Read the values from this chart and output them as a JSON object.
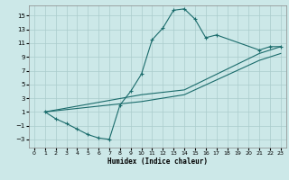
{
  "xlabel": "Humidex (Indice chaleur)",
  "bg_color": "#cce8e8",
  "grid_color": "#aacccc",
  "line_color": "#1a6b6b",
  "xlim": [
    -0.5,
    23.5
  ],
  "ylim": [
    -4.2,
    16.5
  ],
  "xticks": [
    0,
    1,
    2,
    3,
    4,
    5,
    6,
    7,
    8,
    9,
    10,
    11,
    12,
    13,
    14,
    15,
    16,
    17,
    18,
    19,
    20,
    21,
    22,
    23
  ],
  "yticks": [
    -3,
    -1,
    1,
    3,
    5,
    7,
    9,
    11,
    13,
    15
  ],
  "curve_x": [
    1,
    2,
    3,
    4,
    5,
    6,
    7,
    8,
    9,
    10,
    11,
    12,
    13,
    14,
    15,
    16,
    17,
    21,
    22,
    23
  ],
  "curve_y": [
    1,
    0,
    -0.7,
    -1.5,
    -2.3,
    -2.8,
    -3.0,
    2.0,
    4.0,
    6.5,
    11.5,
    13.2,
    15.8,
    16.0,
    14.5,
    11.8,
    12.2,
    10.0,
    10.5,
    10.5
  ],
  "line_upper_x": [
    1,
    10,
    14,
    21,
    22,
    23
  ],
  "line_upper_y": [
    1,
    3.5,
    4.2,
    9.5,
    10.0,
    10.5
  ],
  "line_lower_x": [
    1,
    10,
    14,
    21,
    22,
    23
  ],
  "line_lower_y": [
    1,
    2.5,
    3.5,
    8.5,
    9.0,
    9.5
  ]
}
